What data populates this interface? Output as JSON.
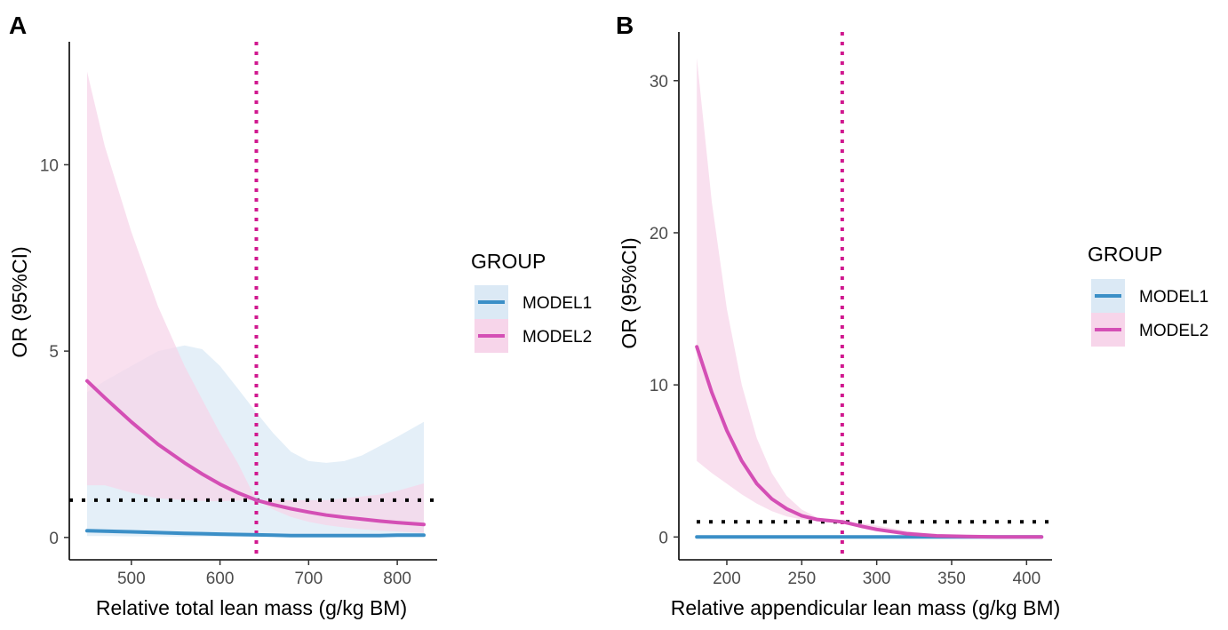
{
  "chart_data": [
    {
      "panel": "A",
      "type": "line",
      "xlabel": "Relative total lean mass (g/kg BM)",
      "ylabel": "OR (95%CI)",
      "xlim": [
        430,
        845
      ],
      "ylim": [
        -0.6,
        13.3
      ],
      "xticks": [
        500,
        600,
        700,
        800
      ],
      "xtick_labels": [
        "500",
        "600",
        "700",
        "800"
      ],
      "yticks": [
        0,
        5,
        10
      ],
      "ytick_labels": [
        "0",
        "5",
        "10"
      ],
      "reference_line_y": 1,
      "cutoff_x": 641,
      "legend": {
        "title": "GROUP",
        "placement": "right"
      },
      "series": [
        {
          "name": "MODEL1",
          "color": "#3b8fc7",
          "fill": "#dbe9f5",
          "x": [
            450,
            470,
            500,
            530,
            560,
            580,
            600,
            620,
            641,
            660,
            680,
            700,
            720,
            740,
            760,
            780,
            800,
            830
          ],
          "y": [
            0.18,
            0.17,
            0.15,
            0.13,
            0.11,
            0.1,
            0.09,
            0.08,
            0.07,
            0.06,
            0.05,
            0.05,
            0.05,
            0.05,
            0.05,
            0.05,
            0.06,
            0.06
          ],
          "upper": [
            3.9,
            4.2,
            4.6,
            5.0,
            5.15,
            5.05,
            4.6,
            4.0,
            3.35,
            2.8,
            2.3,
            2.05,
            2.0,
            2.05,
            2.2,
            2.45,
            2.7,
            3.1
          ],
          "lower": [
            0.04,
            0.04,
            0.03,
            0.03,
            0.02,
            0.02,
            0.02,
            0.02,
            0.02,
            0.02,
            0.02,
            0.02,
            0.01,
            0.01,
            0.01,
            0.01,
            0.01,
            0.01
          ]
        },
        {
          "name": "MODEL2",
          "color": "#d44fb5",
          "fill": "#f7d5ea",
          "x": [
            450,
            470,
            500,
            530,
            560,
            580,
            600,
            620,
            641,
            660,
            680,
            700,
            720,
            740,
            760,
            780,
            800,
            830
          ],
          "y": [
            4.2,
            3.75,
            3.1,
            2.5,
            2.0,
            1.7,
            1.43,
            1.2,
            1.0,
            0.88,
            0.77,
            0.68,
            0.6,
            0.54,
            0.49,
            0.44,
            0.4,
            0.35
          ],
          "upper": [
            12.5,
            10.5,
            8.2,
            6.2,
            4.6,
            3.7,
            2.8,
            2.0,
            1.0,
            1.0,
            1.0,
            1.0,
            1.0,
            1.05,
            1.1,
            1.15,
            1.25,
            1.45
          ],
          "lower": [
            1.4,
            1.4,
            1.2,
            1.05,
            1.0,
            0.98,
            0.97,
            0.99,
            1.0,
            0.75,
            0.55,
            0.42,
            0.33,
            0.27,
            0.22,
            0.18,
            0.16,
            0.12
          ]
        }
      ]
    },
    {
      "panel": "B",
      "type": "line",
      "xlabel": "Relative appendicular lean mass (g/kg BM)",
      "ylabel": "OR (95%CI)",
      "xlim": [
        168,
        417
      ],
      "ylim": [
        -1.5,
        33.2
      ],
      "xticks": [
        200,
        250,
        300,
        350,
        400
      ],
      "xtick_labels": [
        "200",
        "250",
        "300",
        "350",
        "400"
      ],
      "yticks": [
        0,
        10,
        20,
        30
      ],
      "ytick_labels": [
        "0",
        "10",
        "20",
        "30"
      ],
      "reference_line_y": 1,
      "cutoff_x": 277,
      "legend": {
        "title": "GROUP",
        "placement": "right"
      },
      "series": [
        {
          "name": "MODEL1",
          "color": "#3b8fc7",
          "fill": "#dbe9f5",
          "x": [
            180,
            410
          ],
          "y": [
            0,
            0
          ],
          "upper": [
            0.05,
            0.05
          ],
          "lower": [
            0,
            0
          ]
        },
        {
          "name": "MODEL2",
          "color": "#d44fb5",
          "fill": "#f7d5ea",
          "x": [
            180,
            190,
            200,
            210,
            220,
            230,
            240,
            250,
            260,
            277,
            290,
            300,
            320,
            340,
            360,
            380,
            410
          ],
          "y": [
            12.5,
            9.5,
            7.0,
            5.0,
            3.5,
            2.5,
            1.85,
            1.4,
            1.15,
            1.0,
            0.7,
            0.5,
            0.22,
            0.08,
            0.03,
            0.01,
            0.0
          ],
          "upper": [
            31.5,
            22.0,
            15.0,
            10.0,
            6.5,
            4.2,
            2.7,
            1.8,
            1.3,
            1.0,
            0.9,
            0.75,
            0.4,
            0.15,
            0.05,
            0.02,
            0.01
          ],
          "lower": [
            5.0,
            4.2,
            3.5,
            2.8,
            2.2,
            1.7,
            1.35,
            1.15,
            1.05,
            1.0,
            0.55,
            0.35,
            0.12,
            0.04,
            0.01,
            0.0,
            0.0
          ]
        }
      ]
    }
  ]
}
